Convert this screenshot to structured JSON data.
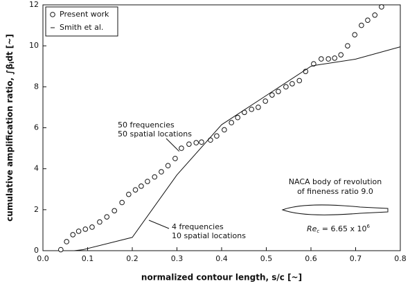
{
  "chart_data": {
    "type": "line",
    "xlabel": "normalized contour length, s/c [~]",
    "ylabel": [
      "cumulative amplification ratio, ∫β",
      "i",
      "dt [~]"
    ],
    "xlim": [
      0,
      0.8
    ],
    "ylim": [
      0,
      12
    ],
    "xticks": [
      {
        "value": 0,
        "label": "0.0"
      },
      0.1,
      0.2,
      0.3,
      0.4,
      0.5,
      0.6,
      0.7,
      0.8
    ],
    "yticks": [
      0,
      2,
      4,
      6,
      8,
      10,
      12
    ],
    "legend": "upper left",
    "series": [
      {
        "name": "Present work",
        "color": "#111111",
        "style": "marker",
        "x": [
          0.04,
          0.053,
          0.067,
          0.08,
          0.095,
          0.11,
          0.127,
          0.143,
          0.16,
          0.177,
          0.192,
          0.207,
          0.22,
          0.234,
          0.25,
          0.265,
          0.28,
          0.296,
          0.31,
          0.327,
          0.343,
          0.355,
          0.375,
          0.389,
          0.406,
          0.422,
          0.436,
          0.451,
          0.467,
          0.482,
          0.498,
          0.513,
          0.527,
          0.544,
          0.558,
          0.574,
          0.588,
          0.606,
          0.623,
          0.639,
          0.653,
          0.667,
          0.682,
          0.698,
          0.713,
          0.727,
          0.743,
          0.758
        ],
        "values": [
          0.05,
          0.44,
          0.78,
          0.95,
          1.05,
          1.15,
          1.4,
          1.65,
          1.95,
          2.35,
          2.75,
          2.97,
          3.15,
          3.38,
          3.6,
          3.85,
          4.15,
          4.5,
          5.0,
          5.2,
          5.27,
          5.3,
          5.4,
          5.6,
          5.9,
          6.25,
          6.5,
          6.75,
          6.9,
          7.0,
          7.3,
          7.6,
          7.77,
          8.0,
          8.15,
          8.3,
          8.75,
          9.12,
          9.36,
          9.36,
          9.4,
          9.56,
          10.0,
          10.54,
          11.0,
          11.25,
          11.5,
          11.9
        ]
      },
      {
        "name": "Smith et al.",
        "color": "#111111",
        "style": "line",
        "x": [
          0.07,
          0.09,
          0.2,
          0.3,
          0.4,
          0.6,
          0.61,
          0.7,
          0.8
        ],
        "values": [
          0,
          0.05,
          0.65,
          3.7,
          6.15,
          9.0,
          9.05,
          9.35,
          9.95
        ]
      }
    ],
    "annotations": {
      "high": [
        "50 frequencies",
        "50 spatial locations"
      ],
      "low": [
        "4 frequencies",
        "10 spatial locations"
      ],
      "body": [
        "NACA body of revolution",
        "of fineness ratio 9.0"
      ],
      "reynolds": [
        "Re",
        "c",
        " = 6.65 x 10",
        "6"
      ]
    }
  }
}
